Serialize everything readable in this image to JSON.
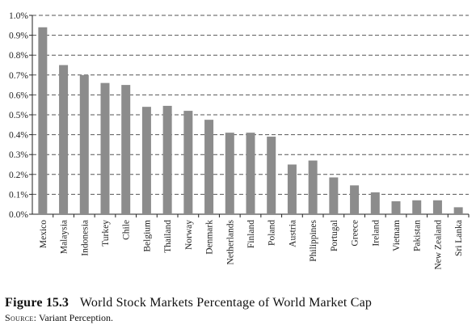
{
  "chart_data": {
    "type": "bar",
    "categories": [
      "Mexico",
      "Malaysia",
      "Indonesia",
      "Turkey",
      "Chile",
      "Belgium",
      "Thailand",
      "Norway",
      "Denmark",
      "Netherlands",
      "Finland",
      "Poland",
      "Austria",
      "Philippines",
      "Portugal",
      "Greece",
      "Ireland",
      "Vietnam",
      "Pakistan",
      "New Zealand",
      "Sri Lanka"
    ],
    "values": [
      0.94,
      0.75,
      0.7,
      0.66,
      0.65,
      0.54,
      0.545,
      0.52,
      0.475,
      0.41,
      0.41,
      0.39,
      0.25,
      0.27,
      0.185,
      0.145,
      0.11,
      0.065,
      0.07,
      0.07,
      0.035
    ],
    "yticks": [
      "0.0%",
      "0.1%",
      "0.2%",
      "0.3%",
      "0.4%",
      "0.5%",
      "0.6%",
      "0.7%",
      "0.8%",
      "0.9%",
      "1.0%"
    ],
    "ylim": [
      0,
      1.0
    ],
    "grid": true,
    "bar_color": "#8c8c8c",
    "grid_color": "#555555"
  },
  "caption": {
    "figure_label": "Figure",
    "figure_number": "15.3",
    "title": "World Stock Markets Percentage of World Market Cap",
    "source_label": "Source:",
    "source_text": "Variant Perception."
  }
}
